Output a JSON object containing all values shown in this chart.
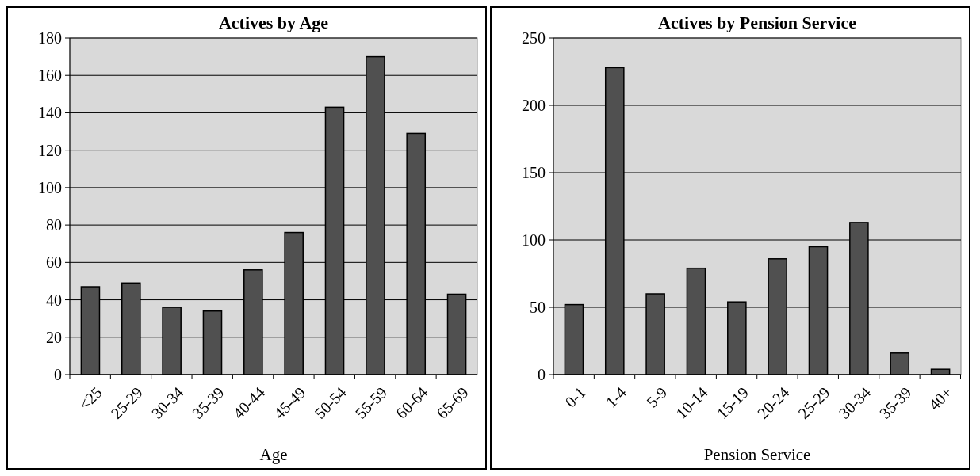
{
  "chart_data": [
    {
      "type": "bar",
      "title": "Actives by Age",
      "xlabel": "Age",
      "categories": [
        "<25",
        "25-29",
        "30-34",
        "35-39",
        "40-44",
        "45-49",
        "50-54",
        "55-59",
        "60-64",
        "65-69"
      ],
      "values": [
        47,
        49,
        36,
        34,
        56,
        76,
        143,
        170,
        129,
        43
      ],
      "color": "#505050",
      "ylim": [
        0,
        180
      ],
      "yticks": [
        0,
        20,
        40,
        60,
        80,
        100,
        120,
        140,
        160,
        180
      ],
      "grid": "y"
    },
    {
      "type": "bar",
      "title": "Actives by Pension Service",
      "xlabel": "Pension Service",
      "categories": [
        "0-1",
        "1-4",
        "5-9",
        "10-14",
        "15-19",
        "20-24",
        "25-29",
        "30-34",
        "35-39",
        "40+"
      ],
      "values": [
        52,
        228,
        60,
        79,
        54,
        86,
        95,
        113,
        16,
        4
      ],
      "color": "#505050",
      "ylim": [
        0,
        250
      ],
      "yticks": [
        0,
        50,
        100,
        150,
        200,
        250
      ],
      "grid": "y"
    }
  ]
}
